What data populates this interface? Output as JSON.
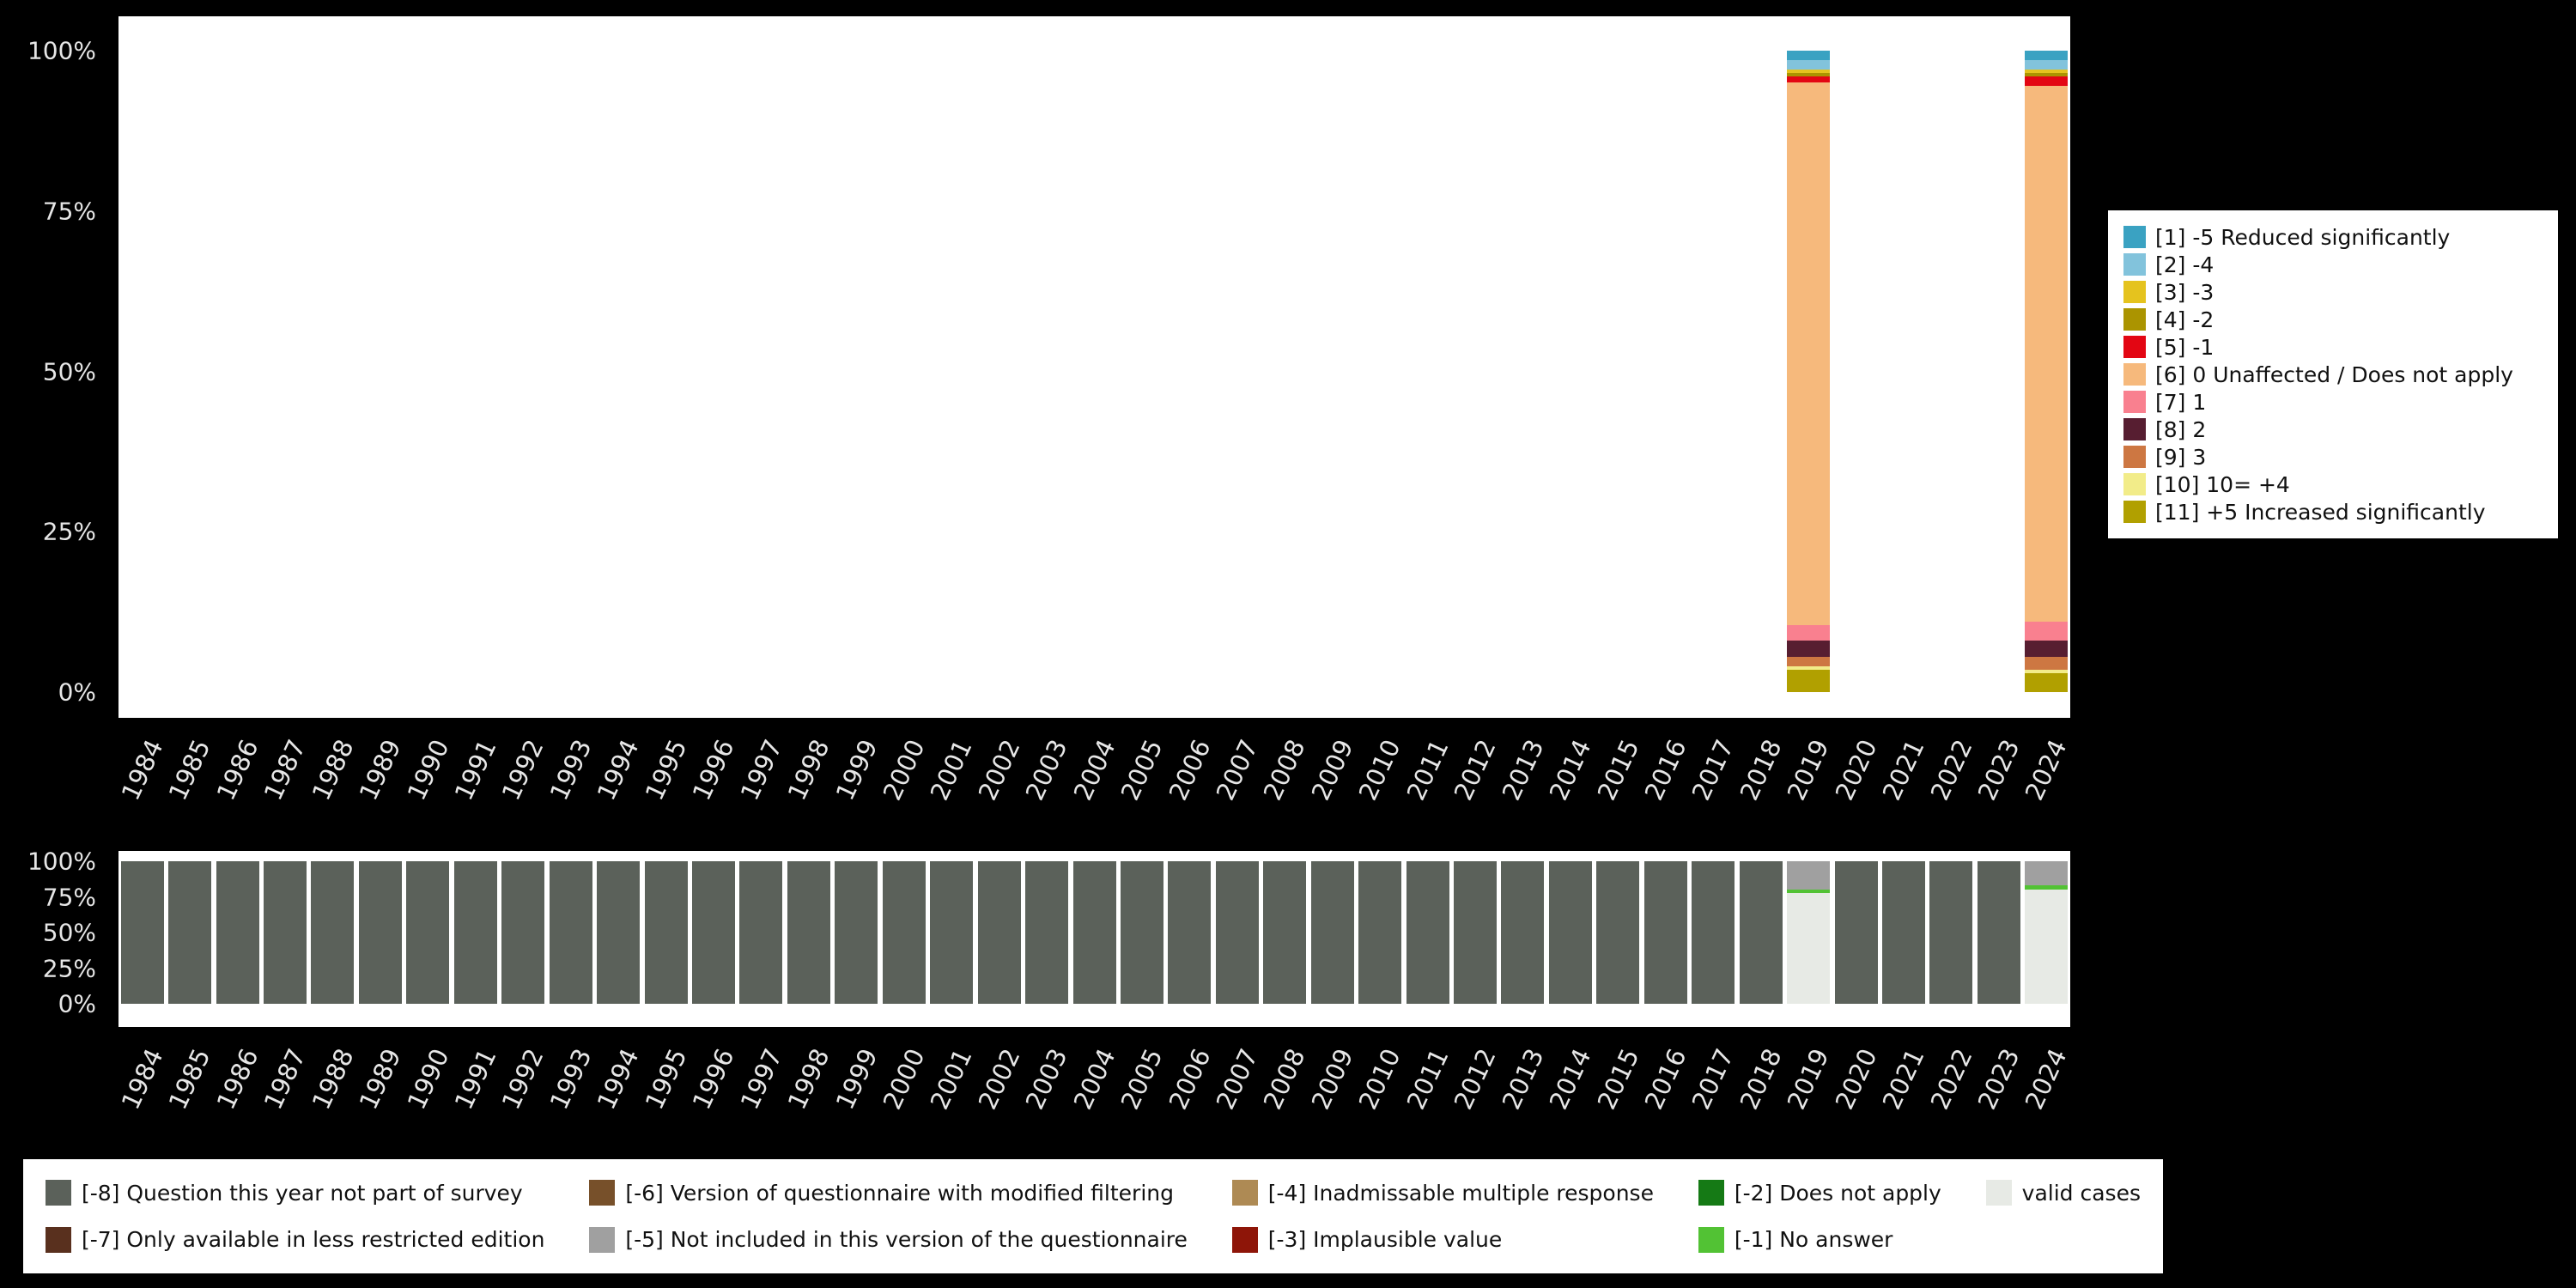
{
  "colors": {
    "background": "#000000",
    "plot_background": "#ffffff",
    "axis_text": "#e6e6e6",
    "legend_background": "#ffffff",
    "legend_text": "#111111"
  },
  "chart_data": [
    {
      "type": "bar",
      "stacked": true,
      "title": "",
      "xlabel": "",
      "ylabel": "",
      "unit": "percent",
      "ylim": [
        0,
        100
      ],
      "yticks": [
        "100%",
        "75%",
        "50%",
        "25%",
        "0%"
      ],
      "grid": false,
      "legend_position": "right",
      "categories": [
        "1984",
        "1985",
        "1986",
        "1987",
        "1988",
        "1989",
        "1990",
        "1991",
        "1992",
        "1993",
        "1994",
        "1995",
        "1996",
        "1997",
        "1998",
        "1999",
        "2000",
        "2001",
        "2002",
        "2003",
        "2004",
        "2005",
        "2006",
        "2007",
        "2008",
        "2009",
        "2010",
        "2011",
        "2012",
        "2013",
        "2014",
        "2015",
        "2016",
        "2017",
        "2018",
        "2019",
        "2020",
        "2021",
        "2022",
        "2023",
        "2024"
      ],
      "legend": [
        {
          "name": "[1] -5 Reduced significantly",
          "color": "#3aa2c2",
          "values": {
            "2019": 1.5,
            "2024": 1.5
          }
        },
        {
          "name": "[2] -4",
          "color": "#82c3dc",
          "values": {
            "2019": 1.5,
            "2024": 1.5
          }
        },
        {
          "name": "[3] -3",
          "color": "#e5c31e",
          "values": {
            "2019": 0.5,
            "2024": 0.5
          }
        },
        {
          "name": "[4] -2",
          "color": "#ab9400",
          "values": {
            "2019": 0.5,
            "2024": 0.5
          }
        },
        {
          "name": "[5] -1",
          "color": "#e30613",
          "values": {
            "2019": 1.0,
            "2024": 1.5
          }
        },
        {
          "name": "[6] 0 Unaffected / Does not apply",
          "color": "#f6b97c",
          "values": {
            "2019": 84.5,
            "2024": 83.5
          }
        },
        {
          "name": "[7] 1",
          "color": "#f9808f",
          "values": {
            "2019": 2.5,
            "2024": 3.0
          }
        },
        {
          "name": "[8] 2",
          "color": "#571e31",
          "values": {
            "2019": 2.5,
            "2024": 2.5
          }
        },
        {
          "name": "[9] 3",
          "color": "#cd7742",
          "values": {
            "2019": 1.5,
            "2024": 2.0
          }
        },
        {
          "name": "[10] 10= +4",
          "color": "#f2ec89",
          "values": {
            "2019": 0.5,
            "2024": 0.5
          }
        },
        {
          "name": "[11] +5 Increased significantly",
          "color": "#b1a000",
          "values": {
            "2019": 3.5,
            "2024": 3.0
          }
        }
      ]
    },
    {
      "type": "bar",
      "stacked": true,
      "title": "",
      "xlabel": "",
      "ylabel": "",
      "unit": "percent",
      "ylim": [
        0,
        100
      ],
      "yticks": [
        "100%",
        "75%",
        "50%",
        "25%",
        "0%"
      ],
      "grid": false,
      "legend_position": "bottom",
      "categories": [
        "1984",
        "1985",
        "1986",
        "1987",
        "1988",
        "1989",
        "1990",
        "1991",
        "1992",
        "1993",
        "1994",
        "1995",
        "1996",
        "1997",
        "1998",
        "1999",
        "2000",
        "2001",
        "2002",
        "2003",
        "2004",
        "2005",
        "2006",
        "2007",
        "2008",
        "2009",
        "2010",
        "2011",
        "2012",
        "2013",
        "2014",
        "2015",
        "2016",
        "2017",
        "2018",
        "2019",
        "2020",
        "2021",
        "2022",
        "2023",
        "2024"
      ],
      "legend": [
        {
          "name": "[-8] Question this year not part of survey",
          "color": "#5b615a",
          "default": 100,
          "values": {
            "2019": 0,
            "2024": 0
          }
        },
        {
          "name": "[-7] Only available in less restricted edition",
          "color": "#59301e",
          "values": {}
        },
        {
          "name": "[-6] Version of questionnaire with modified filtering",
          "color": "#77502a",
          "values": {}
        },
        {
          "name": "[-5] Not included in this version of the questionnaire",
          "color": "#a0a0a0",
          "values": {
            "2019": 20,
            "2024": 17
          }
        },
        {
          "name": "[-4] Inadmissable multiple response",
          "color": "#ae8a54",
          "values": {}
        },
        {
          "name": "[-3] Implausible value",
          "color": "#8e1508",
          "values": {}
        },
        {
          "name": "[-2] Does not apply",
          "color": "#157a15",
          "values": {}
        },
        {
          "name": "[-1] No answer",
          "color": "#52c234",
          "values": {
            "2019": 2,
            "2024": 3
          }
        },
        {
          "name": "valid cases",
          "color": "#e7eae5",
          "values": {
            "2019": 78,
            "2024": 80
          }
        }
      ]
    }
  ]
}
